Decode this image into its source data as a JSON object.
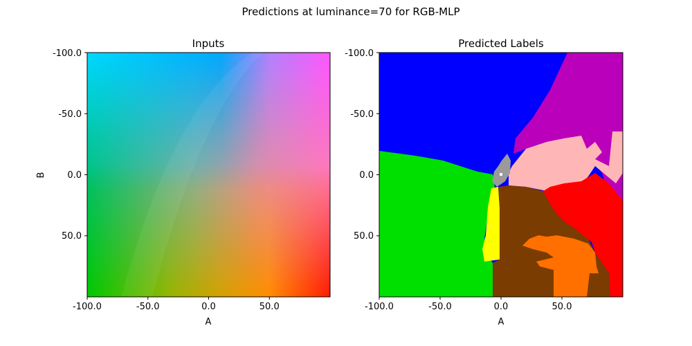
{
  "figure": {
    "suptitle": "Predictions at luminance=70 for RGB-MLP"
  },
  "chart_data": [
    {
      "type": "heatmap",
      "title": "Inputs",
      "xlabel": "A",
      "ylabel": "B",
      "xlim": [
        -100,
        100
      ],
      "ylim": [
        100,
        -100
      ],
      "x_ticks": [
        "-100.0",
        "-50.0",
        "0.0",
        "50.0"
      ],
      "y_ticks": [
        "-100.0",
        "-50.0",
        "0.0",
        "50.0"
      ],
      "description_colors": {
        "top_left": "#00d8ff",
        "top_center": "#00a8ff",
        "top_right": "#ff55ff",
        "middle_left": "#00c070",
        "middle_right": "#ff7fb0",
        "bottom_left": "#00c800",
        "bottom_center": "#d4a000",
        "bottom_right": "#ff1a00"
      }
    },
    {
      "type": "heatmap",
      "title": "Predicted Labels",
      "xlabel": "A",
      "ylabel": "",
      "xlim": [
        -100,
        100
      ],
      "ylim": [
        100,
        -100
      ],
      "x_ticks": [
        "-100.0",
        "-50.0",
        "0.0",
        "50.0"
      ],
      "y_ticks": [
        "-100.0",
        "-50.0",
        "0.0",
        "50.0"
      ],
      "label_colors": {
        "blue": "#0000ff",
        "purple": "#bb00bb",
        "pink": "#ffb6b6",
        "green": "#00e000",
        "grey": "#9a9a9a",
        "yellow": "#ffff00",
        "brown": "#7a3c00",
        "red": "#ff0000",
        "orange": "#ff7000",
        "white": "#ffffff"
      }
    }
  ]
}
